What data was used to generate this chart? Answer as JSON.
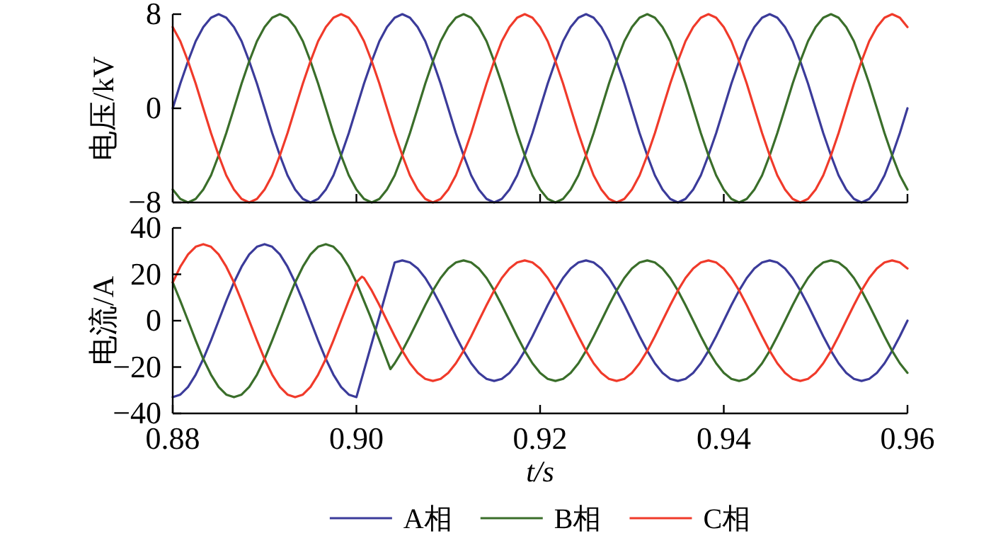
{
  "chart_data": [
    {
      "type": "line",
      "ylabel": "电压/kV",
      "xlim": [
        0.88,
        0.96
      ],
      "ylim": [
        -8,
        8
      ],
      "yticks": [
        -8,
        0,
        8
      ],
      "xticks": [
        0.88,
        0.9,
        0.92,
        0.94,
        0.96
      ],
      "tick_labels": "y",
      "grid": false,
      "marker": "none",
      "line_style": "solid",
      "x": [
        0.88,
        0.88083,
        0.88167,
        0.8825,
        0.88333,
        0.88417,
        0.885,
        0.88583,
        0.88667,
        0.8875,
        0.88833,
        0.88917,
        0.89,
        0.89083,
        0.89167,
        0.8925,
        0.89333,
        0.89417,
        0.895,
        0.89583,
        0.89667,
        0.8975,
        0.89833,
        0.89917,
        0.9,
        0.90083,
        0.90167,
        0.9025,
        0.90333,
        0.90417,
        0.905,
        0.90583,
        0.90667,
        0.9075,
        0.90833,
        0.90917,
        0.91,
        0.91083,
        0.91167,
        0.9125,
        0.91333,
        0.91417,
        0.915,
        0.91583,
        0.91667,
        0.9175,
        0.91833,
        0.91917,
        0.92,
        0.92083,
        0.92167,
        0.9225,
        0.92333,
        0.92417,
        0.925,
        0.92583,
        0.92667,
        0.9275,
        0.92833,
        0.92917,
        0.93,
        0.93083,
        0.93167,
        0.9325,
        0.93333,
        0.93417,
        0.935,
        0.93583,
        0.93667,
        0.9375,
        0.93833,
        0.93917,
        0.94,
        0.94083,
        0.94167,
        0.9425,
        0.94333,
        0.94417,
        0.945,
        0.94583,
        0.94667,
        0.9475,
        0.94833,
        0.94917,
        0.95,
        0.95083,
        0.95167,
        0.9525,
        0.95333,
        0.95417,
        0.955,
        0.95583,
        0.95667,
        0.9575,
        0.95833,
        0.95917,
        0.96
      ],
      "series": [
        {
          "color": "#3b3b9a",
          "values": [
            0,
            2.1,
            4,
            5.7,
            6.9,
            7.7,
            8,
            7.7,
            6.9,
            5.7,
            4,
            2.1,
            0,
            -2.1,
            -4,
            -5.7,
            -6.9,
            -7.7,
            -8,
            -7.7,
            -6.9,
            -5.7,
            -4,
            -2.1,
            0,
            2.1,
            4,
            5.7,
            6.9,
            7.7,
            8,
            7.7,
            6.9,
            5.7,
            4,
            2.1,
            0,
            -2.1,
            -4,
            -5.7,
            -6.9,
            -7.7,
            -8,
            -7.7,
            -6.9,
            -5.7,
            -4,
            -2.1,
            0,
            2.1,
            4,
            5.7,
            6.9,
            7.7,
            8,
            7.7,
            6.9,
            5.7,
            4,
            2.1,
            0,
            -2.1,
            -4,
            -5.7,
            -6.9,
            -7.7,
            -8,
            -7.7,
            -6.9,
            -5.7,
            -4,
            -2.1,
            0,
            2.1,
            4,
            5.7,
            6.9,
            7.7,
            8,
            7.7,
            6.9,
            5.7,
            4,
            2.1,
            0,
            -2.1,
            -4,
            -5.7,
            -6.9,
            -7.7,
            -8,
            -7.7,
            -6.9,
            -5.7,
            -4,
            -2.1,
            0
          ]
        },
        {
          "color": "#3a6e2a",
          "values": [
            -6.9,
            -7.7,
            -8,
            -7.7,
            -6.9,
            -5.7,
            -4,
            -2.1,
            0,
            2.1,
            4,
            5.7,
            6.9,
            7.7,
            8,
            7.7,
            6.9,
            5.7,
            4,
            2.1,
            0,
            -2.1,
            -4,
            -5.7,
            -6.9,
            -7.7,
            -8,
            -7.7,
            -6.9,
            -5.7,
            -4,
            -2.1,
            0,
            2.1,
            4,
            5.7,
            6.9,
            7.7,
            8,
            7.7,
            6.9,
            5.7,
            4,
            2.1,
            0,
            -2.1,
            -4,
            -5.7,
            -6.9,
            -7.7,
            -8,
            -7.7,
            -6.9,
            -5.7,
            -4,
            -2.1,
            0,
            2.1,
            4,
            5.7,
            6.9,
            7.7,
            8,
            7.7,
            6.9,
            5.7,
            4,
            2.1,
            0,
            -2.1,
            -4,
            -5.7,
            -6.9,
            -7.7,
            -8,
            -7.7,
            -6.9,
            -5.7,
            -4,
            -2.1,
            0,
            2.1,
            4,
            5.7,
            6.9,
            7.7,
            8,
            7.7,
            6.9,
            5.7,
            4,
            2.1,
            0,
            -2.1,
            -4,
            -5.7,
            -6.9
          ]
        },
        {
          "color": "#f03a2a",
          "values": [
            6.9,
            5.7,
            4,
            2.1,
            0,
            -2.1,
            -4,
            -5.7,
            -6.9,
            -7.7,
            -8,
            -7.7,
            -6.9,
            -5.7,
            -4,
            -2.1,
            0,
            2.1,
            4,
            5.7,
            6.9,
            7.7,
            8,
            7.7,
            6.9,
            5.7,
            4,
            2.1,
            0,
            -2.1,
            -4,
            -5.7,
            -6.9,
            -7.7,
            -8,
            -7.7,
            -6.9,
            -5.7,
            -4,
            -2.1,
            0,
            2.1,
            4,
            5.7,
            6.9,
            7.7,
            8,
            7.7,
            6.9,
            5.7,
            4,
            2.1,
            0,
            -2.1,
            -4,
            -5.7,
            -6.9,
            -7.7,
            -8,
            -7.7,
            -6.9,
            -5.7,
            -4,
            -2.1,
            0,
            2.1,
            4,
            5.7,
            6.9,
            7.7,
            8,
            7.7,
            6.9,
            5.7,
            4,
            2.1,
            0,
            -2.1,
            -4,
            -5.7,
            -6.9,
            -7.7,
            -8,
            -7.7,
            -6.9,
            -5.7,
            -4,
            -2.1,
            0,
            2.1,
            4,
            5.7,
            6.9,
            7.7,
            8,
            7.7,
            6.9
          ]
        }
      ]
    },
    {
      "type": "line",
      "ylabel": "电流/A",
      "xlabel": "t/s",
      "xlim": [
        0.88,
        0.96
      ],
      "ylim": [
        -40,
        40
      ],
      "yticks": [
        -40,
        -20,
        0,
        20,
        40
      ],
      "xticks": [
        0.88,
        {
          "value": 0.9,
          "label": "0.90"
        },
        0.92,
        0.94,
        0.96
      ],
      "grid": false,
      "marker": "none",
      "line_style": "solid",
      "legend": "bottom",
      "series": [
        {
          "name": "A相",
          "color": "#3b3b9a",
          "x": [
            0.88,
            0.88083,
            0.88167,
            0.8825,
            0.88333,
            0.88417,
            0.885,
            0.88583,
            0.88667,
            0.8875,
            0.88833,
            0.88917,
            0.89,
            0.89083,
            0.89167,
            0.8925,
            0.89333,
            0.89417,
            0.895,
            0.89583,
            0.89667,
            0.8975,
            0.89833,
            0.89917,
            0.9,
            0.90417,
            0.905,
            0.90583,
            0.90667,
            0.9075,
            0.90833,
            0.90917,
            0.91,
            0.91083,
            0.91167,
            0.9125,
            0.91333,
            0.91417,
            0.915,
            0.91583,
            0.91667,
            0.9175,
            0.91833,
            0.91917,
            0.92,
            0.92083,
            0.92167,
            0.9225,
            0.92333,
            0.92417,
            0.925,
            0.92583,
            0.92667,
            0.9275,
            0.92833,
            0.92917,
            0.93,
            0.93083,
            0.93167,
            0.9325,
            0.93333,
            0.93417,
            0.935,
            0.93583,
            0.93667,
            0.9375,
            0.93833,
            0.93917,
            0.94,
            0.94083,
            0.94167,
            0.9425,
            0.94333,
            0.94417,
            0.945,
            0.94583,
            0.94667,
            0.9475,
            0.94833,
            0.94917,
            0.95,
            0.95083,
            0.95167,
            0.9525,
            0.95333,
            0.95417,
            0.955,
            0.95583,
            0.95667,
            0.9575,
            0.95833,
            0.95917,
            0.96
          ],
          "values": [
            -33,
            -31.9,
            -28.6,
            -23.3,
            -16.5,
            -8.5,
            0,
            8.5,
            16.5,
            23.3,
            28.6,
            31.9,
            33,
            31.9,
            28.6,
            23.3,
            16.5,
            8.5,
            0,
            -8.5,
            -16.5,
            -23.3,
            -28.6,
            -31.9,
            -33,
            25.1,
            26,
            25.1,
            22.5,
            18.4,
            13,
            6.7,
            0,
            -6.7,
            -13,
            -18.4,
            -22.5,
            -25.1,
            -26,
            -25.1,
            -22.5,
            -18.4,
            -13,
            -6.7,
            0,
            6.7,
            13,
            18.4,
            22.5,
            25.1,
            26,
            25.1,
            22.5,
            18.4,
            13,
            6.7,
            0,
            -6.7,
            -13,
            -18.4,
            -22.5,
            -25.1,
            -26,
            -25.1,
            -22.5,
            -18.4,
            -13,
            -6.7,
            0,
            6.7,
            13,
            18.4,
            22.5,
            25.1,
            26,
            25.1,
            22.5,
            18.4,
            13,
            6.7,
            0,
            -6.7,
            -13,
            -18.4,
            -22.5,
            -25.1,
            -26,
            -25.1,
            -22.5,
            -18.4,
            -13,
            -6.7,
            0
          ]
        },
        {
          "name": "B相",
          "color": "#3a6e2a",
          "x": [
            0.88,
            0.88083,
            0.88167,
            0.8825,
            0.88333,
            0.88417,
            0.885,
            0.88583,
            0.88667,
            0.8875,
            0.88833,
            0.88917,
            0.89,
            0.89083,
            0.89167,
            0.8925,
            0.89333,
            0.89417,
            0.895,
            0.89583,
            0.89667,
            0.8975,
            0.89833,
            0.89917,
            0.9,
            0.9015,
            0.9037,
            0.90417,
            0.905,
            0.90583,
            0.90667,
            0.9075,
            0.90833,
            0.90917,
            0.91,
            0.91083,
            0.91167,
            0.9125,
            0.91333,
            0.91417,
            0.915,
            0.91583,
            0.91667,
            0.9175,
            0.91833,
            0.91917,
            0.92,
            0.92083,
            0.92167,
            0.9225,
            0.92333,
            0.92417,
            0.925,
            0.92583,
            0.92667,
            0.9275,
            0.92833,
            0.92917,
            0.93,
            0.93083,
            0.93167,
            0.9325,
            0.93333,
            0.93417,
            0.935,
            0.93583,
            0.93667,
            0.9375,
            0.93833,
            0.93917,
            0.94,
            0.94083,
            0.94167,
            0.9425,
            0.94333,
            0.94417,
            0.945,
            0.94583,
            0.94667,
            0.9475,
            0.94833,
            0.94917,
            0.95,
            0.95083,
            0.95167,
            0.9525,
            0.95333,
            0.95417,
            0.955,
            0.95583,
            0.95667,
            0.9575,
            0.95833,
            0.95917,
            0.96
          ],
          "values": [
            16.5,
            8.5,
            0,
            -8.5,
            -16.5,
            -23.3,
            -28.6,
            -31.9,
            -33,
            -31.9,
            -28.6,
            -23.3,
            -16.5,
            -8.5,
            0,
            8.5,
            16.5,
            23.3,
            28.6,
            31.9,
            33,
            31.9,
            28.6,
            23.3,
            16.5,
            2,
            -20.9,
            -18.4,
            -13,
            -6.7,
            0,
            6.7,
            13,
            18.4,
            22.5,
            25.1,
            26,
            25.1,
            22.5,
            18.4,
            13,
            6.7,
            0,
            -6.7,
            -13,
            -18.4,
            -22.5,
            -25.1,
            -26,
            -25.1,
            -22.5,
            -18.4,
            -13,
            -6.7,
            0,
            6.7,
            13,
            18.4,
            22.5,
            25.1,
            26,
            25.1,
            22.5,
            18.4,
            13,
            6.7,
            0,
            -6.7,
            -13,
            -18.4,
            -22.5,
            -25.1,
            -26,
            -25.1,
            -22.5,
            -18.4,
            -13,
            -6.7,
            0,
            6.7,
            13,
            18.4,
            22.5,
            25.1,
            26,
            25.1,
            22.5,
            18.4,
            13,
            6.7,
            0,
            -6.7,
            -13,
            -18.4,
            -22.5
          ]
        },
        {
          "name": "C相",
          "color": "#f03a2a",
          "x": [
            0.88,
            0.88083,
            0.88167,
            0.8825,
            0.88333,
            0.88417,
            0.885,
            0.88583,
            0.88667,
            0.8875,
            0.88833,
            0.88917,
            0.89,
            0.89083,
            0.89167,
            0.8925,
            0.89333,
            0.89417,
            0.895,
            0.89583,
            0.89667,
            0.8975,
            0.89833,
            0.89917,
            0.9,
            0.9006,
            0.90083,
            0.90167,
            0.9025,
            0.90333,
            0.90417,
            0.905,
            0.90583,
            0.90667,
            0.9075,
            0.90833,
            0.90917,
            0.91,
            0.91083,
            0.91167,
            0.9125,
            0.91333,
            0.91417,
            0.915,
            0.91583,
            0.91667,
            0.9175,
            0.91833,
            0.91917,
            0.92,
            0.92083,
            0.92167,
            0.9225,
            0.92333,
            0.92417,
            0.925,
            0.92583,
            0.92667,
            0.9275,
            0.92833,
            0.92917,
            0.93,
            0.93083,
            0.93167,
            0.9325,
            0.93333,
            0.93417,
            0.935,
            0.93583,
            0.93667,
            0.9375,
            0.93833,
            0.93917,
            0.94,
            0.94083,
            0.94167,
            0.9425,
            0.94333,
            0.94417,
            0.945,
            0.94583,
            0.94667,
            0.9475,
            0.94833,
            0.94917,
            0.95,
            0.95083,
            0.95167,
            0.9525,
            0.95333,
            0.95417,
            0.955,
            0.95583,
            0.95667,
            0.9575,
            0.95833,
            0.95917,
            0.96
          ],
          "values": [
            16.5,
            23.3,
            28.6,
            31.9,
            33,
            31.9,
            28.6,
            23.3,
            16.5,
            8.5,
            0,
            -8.5,
            -16.5,
            -23.3,
            -28.6,
            -31.9,
            -33,
            -31.9,
            -28.6,
            -23.3,
            -16.5,
            -8.5,
            0,
            8.5,
            16.5,
            19,
            18.4,
            13,
            6.7,
            0,
            -6.7,
            -13,
            -18.4,
            -22.5,
            -25.1,
            -26,
            -25.1,
            -22.5,
            -18.4,
            -13,
            -6.7,
            0,
            6.7,
            13,
            18.4,
            22.5,
            25.1,
            26,
            25.1,
            22.5,
            18.4,
            13,
            6.7,
            0,
            -6.7,
            -13,
            -18.4,
            -22.5,
            -25.1,
            -26,
            -25.1,
            -22.5,
            -18.4,
            -13,
            -6.7,
            0,
            6.7,
            13,
            18.4,
            22.5,
            25.1,
            26,
            25.1,
            22.5,
            18.4,
            13,
            6.7,
            0,
            -6.7,
            -13,
            -18.4,
            -22.5,
            -25.1,
            -26,
            -25.1,
            -22.5,
            -18.4,
            -13,
            -6.7,
            0,
            6.7,
            13,
            18.4,
            22.5,
            25.1,
            26,
            25.1,
            22.5
          ]
        }
      ]
    }
  ]
}
